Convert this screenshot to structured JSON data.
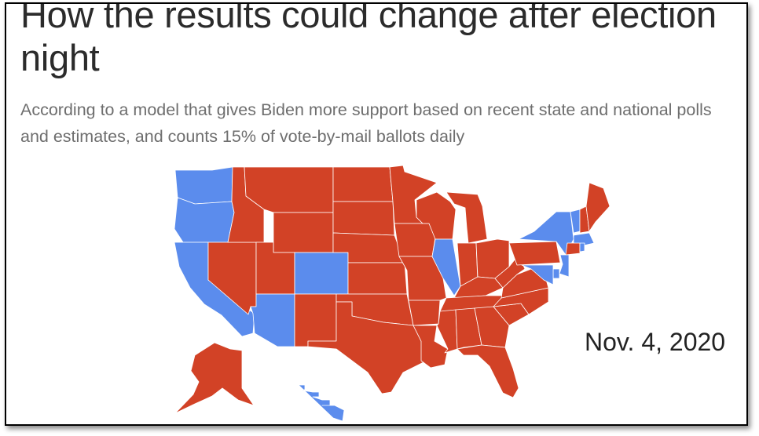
{
  "headline": "How the results could change after election night",
  "subtitle": "According to a model that gives Biden more support based on recent state and national polls and estimates, and counts 15% of vote-by-mail ballots daily",
  "date": "Nov. 4, 2020",
  "colors": {
    "biden": "#5b8ced",
    "trump": "#d24226"
  },
  "map": {
    "states": [
      {
        "id": "WA",
        "party": "biden"
      },
      {
        "id": "OR",
        "party": "biden"
      },
      {
        "id": "CA",
        "party": "biden"
      },
      {
        "id": "NV",
        "party": "trump"
      },
      {
        "id": "ID",
        "party": "trump"
      },
      {
        "id": "MT",
        "party": "trump"
      },
      {
        "id": "WY",
        "party": "trump"
      },
      {
        "id": "UT",
        "party": "trump"
      },
      {
        "id": "CO",
        "party": "biden"
      },
      {
        "id": "AZ",
        "party": "biden"
      },
      {
        "id": "NM",
        "party": "trump"
      },
      {
        "id": "ND",
        "party": "trump"
      },
      {
        "id": "SD",
        "party": "trump"
      },
      {
        "id": "NE",
        "party": "trump"
      },
      {
        "id": "KS",
        "party": "trump"
      },
      {
        "id": "OK",
        "party": "trump"
      },
      {
        "id": "TX",
        "party": "trump"
      },
      {
        "id": "MN",
        "party": "trump"
      },
      {
        "id": "IA",
        "party": "trump"
      },
      {
        "id": "MO",
        "party": "trump"
      },
      {
        "id": "AR",
        "party": "trump"
      },
      {
        "id": "LA",
        "party": "trump"
      },
      {
        "id": "WI",
        "party": "trump"
      },
      {
        "id": "IL",
        "party": "biden"
      },
      {
        "id": "MI",
        "party": "trump"
      },
      {
        "id": "IN",
        "party": "trump"
      },
      {
        "id": "OH",
        "party": "trump"
      },
      {
        "id": "KY",
        "party": "trump"
      },
      {
        "id": "TN",
        "party": "trump"
      },
      {
        "id": "MS",
        "party": "trump"
      },
      {
        "id": "AL",
        "party": "trump"
      },
      {
        "id": "GA",
        "party": "trump"
      },
      {
        "id": "FL",
        "party": "trump"
      },
      {
        "id": "SC",
        "party": "trump"
      },
      {
        "id": "NC",
        "party": "trump"
      },
      {
        "id": "VA",
        "party": "trump"
      },
      {
        "id": "WV",
        "party": "trump"
      },
      {
        "id": "PA",
        "party": "trump"
      },
      {
        "id": "NY",
        "party": "biden"
      },
      {
        "id": "VT",
        "party": "biden"
      },
      {
        "id": "NH",
        "party": "trump"
      },
      {
        "id": "ME",
        "party": "trump"
      },
      {
        "id": "MA",
        "party": "biden"
      },
      {
        "id": "CT",
        "party": "trump"
      },
      {
        "id": "RI",
        "party": "biden"
      },
      {
        "id": "NJ",
        "party": "biden"
      },
      {
        "id": "DE",
        "party": "biden"
      },
      {
        "id": "MD",
        "party": "biden"
      },
      {
        "id": "AK",
        "party": "trump"
      },
      {
        "id": "HI",
        "party": "biden"
      }
    ]
  }
}
